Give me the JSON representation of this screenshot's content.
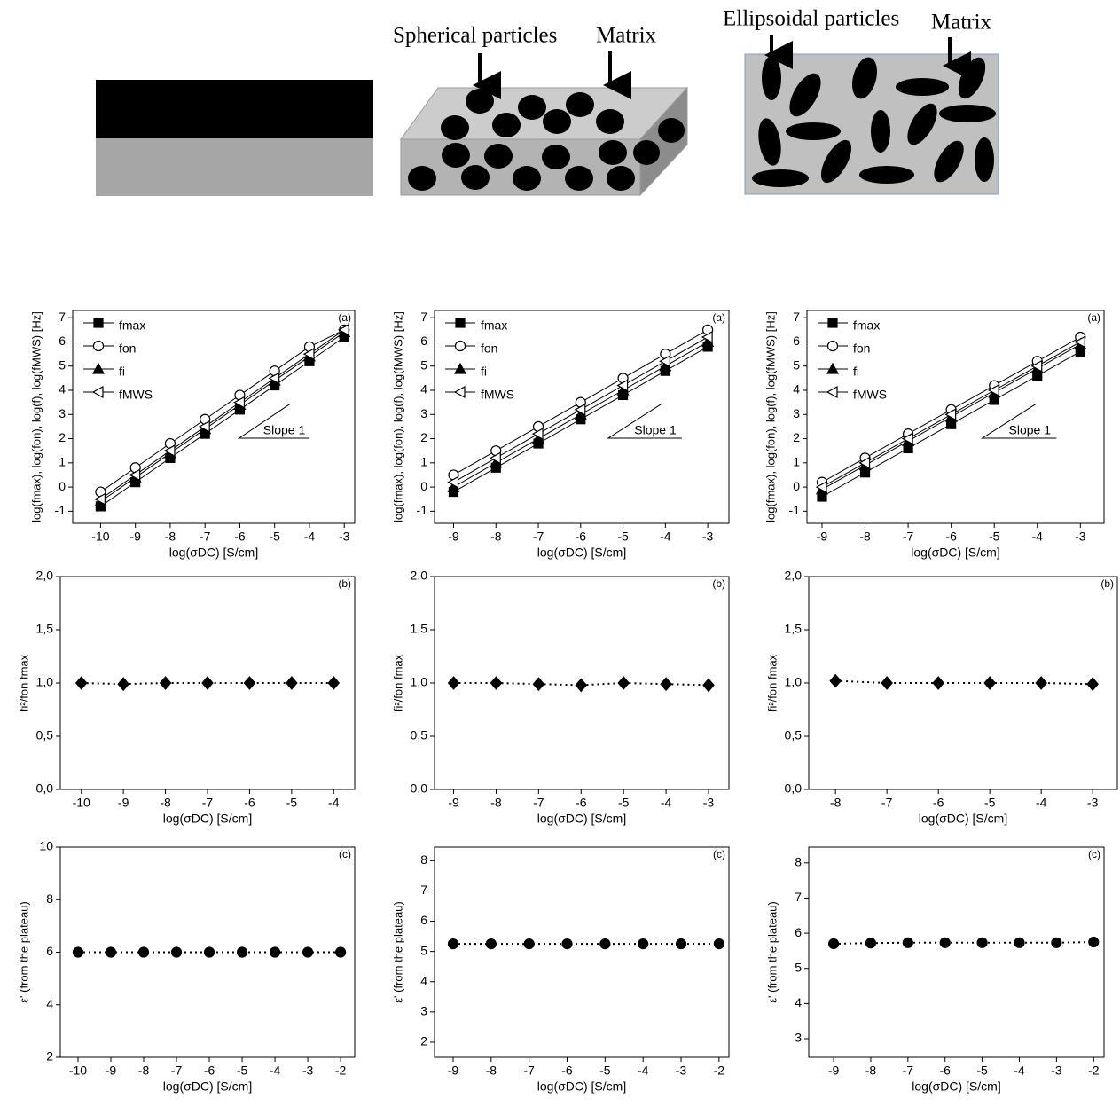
{
  "schematics": {
    "spherical": {
      "particles": "Spherical particles",
      "matrix": "Matrix"
    },
    "ellipsoidal": {
      "particles": "Ellipsoidal particles",
      "matrix": "Matrix"
    }
  },
  "chart_data": [
    {
      "type": "line",
      "panel_label": "(a)",
      "x_label": "log(σDC) [S/cm]",
      "y_label": "log(fmax), log(fon), log(f), log(fMWS) [Hz]",
      "annotation": "Slope 1",
      "legend": "upper left",
      "x": [
        -10,
        -9,
        -8,
        -7,
        -6,
        -5,
        -4,
        -3
      ],
      "xlim": [
        -10.8,
        -2.7
      ],
      "ylim": [
        -1.5,
        7.3
      ],
      "xticks": [
        -10,
        -9,
        -8,
        -7,
        -6,
        -5,
        -4,
        -3
      ],
      "yticks": [
        -1,
        0,
        1,
        2,
        3,
        4,
        5,
        6,
        7
      ],
      "series": [
        {
          "name": "fmax",
          "color": "#000000",
          "marker": "square",
          "filled": true,
          "values": [
            -0.8,
            0.2,
            1.2,
            2.2,
            3.2,
            4.2,
            5.2,
            6.2
          ]
        },
        {
          "name": "fon",
          "color": "#000000",
          "marker": "circle",
          "filled": false,
          "values": [
            -0.2,
            0.8,
            1.8,
            2.8,
            3.8,
            4.8,
            5.8,
            6.5
          ]
        },
        {
          "name": "fi",
          "color": "#000000",
          "marker": "triangle-up",
          "filled": true,
          "values": [
            -0.6,
            0.4,
            1.4,
            2.4,
            3.4,
            4.4,
            5.4,
            6.4
          ]
        },
        {
          "name": "fMWS",
          "color": "#000000",
          "marker": "triangle-left",
          "filled": false,
          "values": [
            -0.5,
            0.5,
            1.5,
            2.5,
            3.5,
            4.5,
            5.5,
            6.5
          ]
        }
      ]
    },
    {
      "type": "line",
      "panel_label": "(a)",
      "x_label": "log(σDC) [S/cm]",
      "y_label": "log(fmax), log(fon), log(f), log(fMWS) [Hz]",
      "annotation": "Slope 1",
      "legend": "upper left",
      "x": [
        -9,
        -8,
        -7,
        -6,
        -5,
        -4,
        -3
      ],
      "xlim": [
        -9.45,
        -2.5
      ],
      "ylim": [
        -1.5,
        7.3
      ],
      "xticks": [
        -9,
        -8,
        -7,
        -6,
        -5,
        -4,
        -3
      ],
      "yticks": [
        -1,
        0,
        1,
        2,
        3,
        4,
        5,
        6,
        7
      ],
      "series": [
        {
          "name": "fmax",
          "color": "#000000",
          "marker": "square",
          "filled": true,
          "values": [
            -0.2,
            0.8,
            1.8,
            2.8,
            3.8,
            4.8,
            5.8
          ]
        },
        {
          "name": "fon",
          "color": "#000000",
          "marker": "circle",
          "filled": false,
          "values": [
            0.5,
            1.5,
            2.5,
            3.5,
            4.5,
            5.5,
            6.5
          ]
        },
        {
          "name": "fi",
          "color": "#000000",
          "marker": "triangle-up",
          "filled": true,
          "values": [
            0.0,
            1.0,
            2.0,
            3.0,
            4.0,
            5.0,
            6.0
          ]
        },
        {
          "name": "fMWS",
          "color": "#000000",
          "marker": "triangle-left",
          "filled": false,
          "values": [
            0.2,
            1.2,
            2.2,
            3.2,
            4.2,
            5.2,
            6.2
          ]
        }
      ]
    },
    {
      "type": "line",
      "panel_label": "(a)",
      "x_label": "log(σDC) [S/cm]",
      "y_label": "log(fmax), log(fon), log(f), log(fMWS) [Hz]",
      "annotation": "Slope 1",
      "legend": "upper left",
      "x": [
        -9,
        -8,
        -7,
        -6,
        -5,
        -4,
        -3
      ],
      "xlim": [
        -9.35,
        -2.45
      ],
      "ylim": [
        -1.5,
        7.3
      ],
      "xticks": [
        -9,
        -8,
        -7,
        -6,
        -5,
        -4,
        -3
      ],
      "yticks": [
        -1,
        0,
        1,
        2,
        3,
        4,
        5,
        6,
        7
      ],
      "series": [
        {
          "name": "fmax",
          "color": "#000000",
          "marker": "square",
          "filled": true,
          "values": [
            -0.4,
            0.6,
            1.6,
            2.6,
            3.6,
            4.6,
            5.6
          ]
        },
        {
          "name": "fon",
          "color": "#000000",
          "marker": "circle",
          "filled": false,
          "values": [
            0.2,
            1.2,
            2.2,
            3.2,
            4.2,
            5.2,
            6.2
          ]
        },
        {
          "name": "fi",
          "color": "#000000",
          "marker": "triangle-up",
          "filled": true,
          "values": [
            -0.1,
            0.9,
            1.9,
            2.9,
            3.9,
            4.9,
            5.9
          ]
        },
        {
          "name": "fMWS",
          "color": "#000000",
          "marker": "triangle-left",
          "filled": false,
          "values": [
            0.0,
            1.0,
            2.0,
            3.0,
            4.0,
            5.0,
            6.0
          ]
        }
      ]
    },
    {
      "type": "line",
      "panel_label": "(b)",
      "x_label": "log(σDC) [S/cm]",
      "y_label": "fi²/fon fmax",
      "marker": "diamond",
      "color": "#000000",
      "line_style": "dotted",
      "x": [
        -10,
        -9,
        -8,
        -7,
        -6,
        -5,
        -4
      ],
      "values": [
        1.0,
        0.99,
        1.0,
        1.0,
        1.0,
        1.0,
        1.0
      ],
      "xlim": [
        -10.5,
        -3.5
      ],
      "ylim": [
        0,
        2.0
      ],
      "xticks": [
        -10,
        -9,
        -8,
        -7,
        -6,
        -5,
        -4
      ],
      "yticks": [
        {
          "value": 0,
          "label": "0,0"
        },
        {
          "value": 0.5,
          "label": "0,5"
        },
        {
          "value": 1.0,
          "label": "1,0"
        },
        {
          "value": 1.5,
          "label": "1,5"
        },
        {
          "value": 2.0,
          "label": "2,0"
        }
      ]
    },
    {
      "type": "line",
      "panel_label": "(b)",
      "x_label": "log(σDC) [S/cm]",
      "y_label": "fi²/fon fmax",
      "marker": "diamond",
      "color": "#000000",
      "line_style": "dotted",
      "x": [
        -9,
        -8,
        -7,
        -6,
        -5,
        -4,
        -3
      ],
      "values": [
        1.0,
        1.0,
        0.99,
        0.98,
        1.0,
        0.99,
        0.98
      ],
      "xlim": [
        -9.45,
        -2.52
      ],
      "ylim": [
        0,
        2.0
      ],
      "xticks": [
        -9,
        -8,
        -7,
        -6,
        -5,
        -4,
        -3
      ],
      "yticks": [
        {
          "value": 0,
          "label": "0,0"
        },
        {
          "value": 0.5,
          "label": "0,5"
        },
        {
          "value": 1.0,
          "label": "1,0"
        },
        {
          "value": 1.5,
          "label": "1,5"
        },
        {
          "value": 2.0,
          "label": "2,0"
        }
      ]
    },
    {
      "type": "line",
      "panel_label": "(b)",
      "x_label": "log(σDC) [S/cm]",
      "y_label": "fi²/fon fmax",
      "marker": "diamond",
      "color": "#000000",
      "line_style": "dotted",
      "x": [
        -8,
        -7,
        -6,
        -5,
        -4,
        -3
      ],
      "values": [
        1.02,
        1.0,
        1.0,
        1.0,
        1.0,
        0.99
      ],
      "xlim": [
        -8.52,
        -2.52
      ],
      "ylim": [
        0,
        2.0
      ],
      "xticks": [
        -8,
        -7,
        -6,
        -5,
        -4,
        -3
      ],
      "yticks": [
        {
          "value": 0,
          "label": "0,0"
        },
        {
          "value": 0.5,
          "label": "0,5"
        },
        {
          "value": 1.0,
          "label": "1,0"
        },
        {
          "value": 1.5,
          "label": "1,5"
        },
        {
          "value": 2.0,
          "label": "2,0"
        }
      ]
    },
    {
      "type": "line",
      "panel_label": "(c)",
      "x_label": "log(σDC) [S/cm]",
      "y_label": "ε' (from the plateau)",
      "marker": "circle",
      "color": "#000000",
      "line_style": "dotted",
      "x": [
        -10,
        -9,
        -8,
        -7,
        -6,
        -5,
        -4,
        -3,
        -2
      ],
      "values": [
        6.0,
        6.0,
        6.0,
        6.0,
        6.0,
        6.0,
        6.0,
        6.0,
        6.0
      ],
      "xlim": [
        -10.54,
        -1.57
      ],
      "ylim": [
        2,
        10
      ],
      "xticks": [
        -10,
        -9,
        -8,
        -7,
        -6,
        -5,
        -4,
        -3,
        -2
      ],
      "yticks": [
        2,
        4,
        6,
        8,
        10
      ]
    },
    {
      "type": "line",
      "panel_label": "(c)",
      "x_label": "log(σDC) [S/cm]",
      "y_label": "ε' (from the plateau)",
      "marker": "circle",
      "color": "#000000",
      "line_style": "dotted",
      "x": [
        -9,
        -8,
        -7,
        -6,
        -5,
        -4,
        -3,
        -2
      ],
      "values": [
        5.25,
        5.25,
        5.25,
        5.25,
        5.25,
        5.25,
        5.25,
        5.25
      ],
      "xlim": [
        -9.49,
        -1.74
      ],
      "ylim": [
        1.5,
        8.45
      ],
      "xticks": [
        -9,
        -8,
        -7,
        -6,
        -5,
        -4,
        -3,
        -2
      ],
      "yticks": [
        2,
        3,
        4,
        5,
        6,
        7,
        8
      ]
    },
    {
      "type": "line",
      "panel_label": "(c)",
      "x_label": "log(σDC) [S/cm]",
      "y_label": "ε' (from the plateau)",
      "marker": "circle",
      "color": "#000000",
      "line_style": "dotted",
      "x": [
        -9,
        -8,
        -7,
        -6,
        -5,
        -4,
        -3,
        -2
      ],
      "values": [
        5.7,
        5.72,
        5.73,
        5.73,
        5.73,
        5.73,
        5.73,
        5.75
      ],
      "xlim": [
        -9.67,
        -1.72
      ],
      "ylim": [
        2.47,
        8.45
      ],
      "xticks": [
        -9,
        -8,
        -7,
        -6,
        -5,
        -4,
        -3,
        -2
      ],
      "yticks": [
        3,
        4,
        5,
        6,
        7,
        8
      ]
    }
  ]
}
